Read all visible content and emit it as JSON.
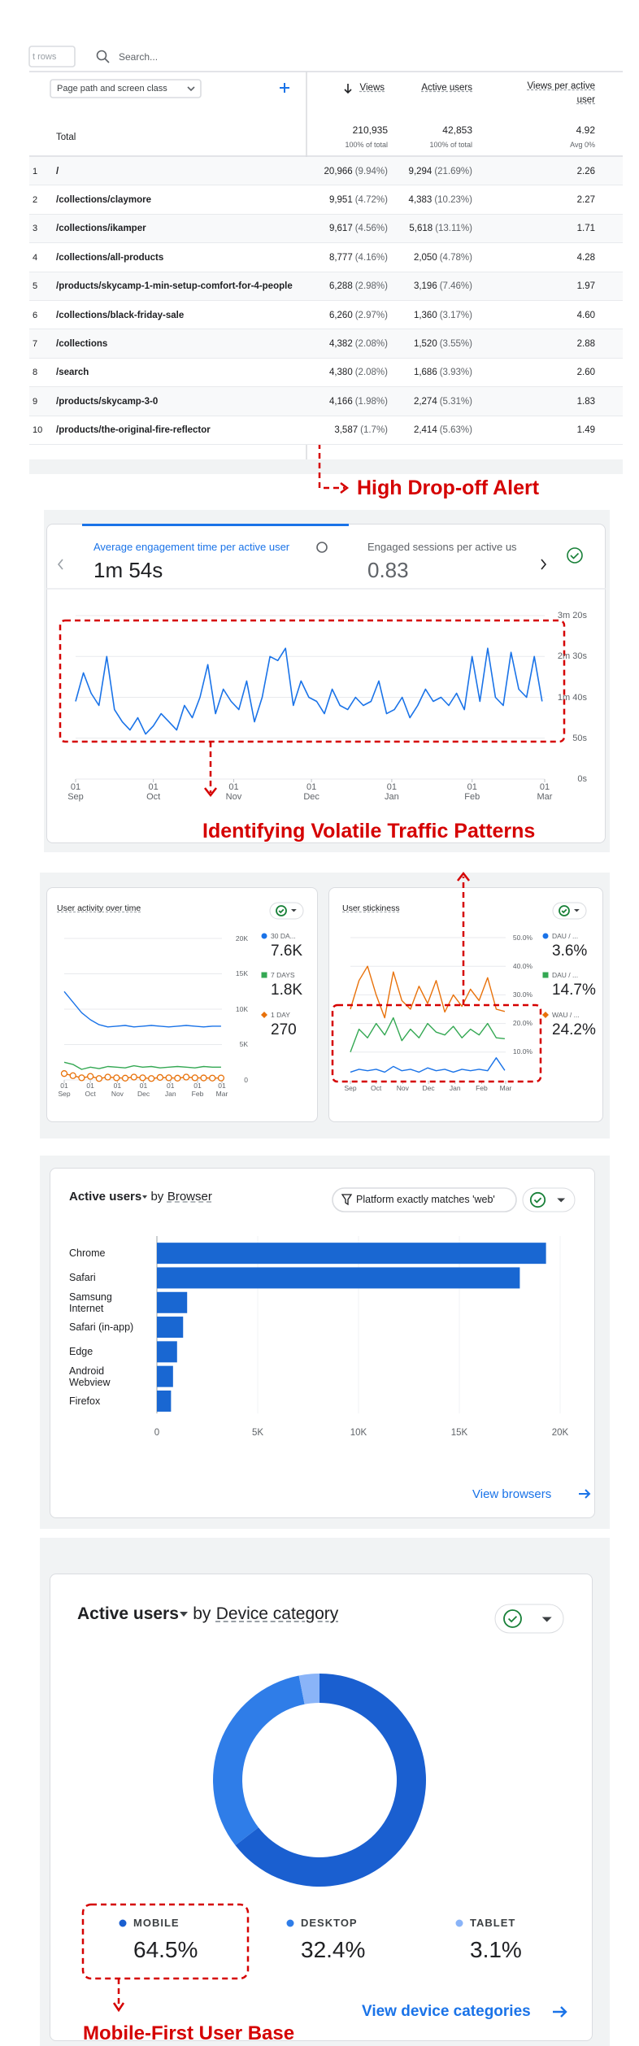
{
  "table": {
    "rows_label": "t rows",
    "search_placeholder": "Search...",
    "dimension": "Page path and screen class",
    "columns": [
      "Views",
      "Active users",
      "Views per active user"
    ],
    "total": {
      "label": "Total",
      "cells": [
        [
          "210,935",
          "100% of total"
        ],
        [
          "42,853",
          "100% of total"
        ],
        [
          "4.92",
          "Avg 0%"
        ]
      ]
    },
    "rows": [
      [
        "1",
        "/",
        "20,966",
        "(9.94%)",
        "9,294",
        "(21.69%)",
        "2.26"
      ],
      [
        "2",
        "/collections/claymore",
        "9,951",
        "(4.72%)",
        "4,383",
        "(10.23%)",
        "2.27"
      ],
      [
        "3",
        "/collections/ikamper",
        "9,617",
        "(4.56%)",
        "5,618",
        "(13.11%)",
        "1.71"
      ],
      [
        "4",
        "/collections/all-products",
        "8,777",
        "(4.16%)",
        "2,050",
        "(4.78%)",
        "4.28"
      ],
      [
        "5",
        "/products/skycamp-1-min-setup-comfort-for-4-people",
        "6,288",
        "(2.98%)",
        "3,196",
        "(7.46%)",
        "1.97"
      ],
      [
        "6",
        "/collections/black-friday-sale",
        "6,260",
        "(2.97%)",
        "1,360",
        "(3.17%)",
        "4.60"
      ],
      [
        "7",
        "/collections",
        "4,382",
        "(2.08%)",
        "1,520",
        "(3.55%)",
        "2.88"
      ],
      [
        "8",
        "/search",
        "4,380",
        "(2.08%)",
        "1,686",
        "(3.93%)",
        "2.60"
      ],
      [
        "9",
        "/products/skycamp-3-0",
        "4,166",
        "(1.98%)",
        "2,274",
        "(5.31%)",
        "1.83"
      ],
      [
        "10",
        "/products/the-original-fire-reflector",
        "3,587",
        "(1.7%)",
        "2,414",
        "(5.63%)",
        "1.49"
      ]
    ]
  },
  "annotations": {
    "drop_off": "High Drop-off Alert",
    "volatile": "Identifying Volatile Traffic Patterns",
    "mobile": "Mobile-First User Base"
  },
  "chart_data": [
    {
      "type": "line",
      "tabs": [
        {
          "label": "Average engagement time per active user",
          "value": "1m 54s"
        },
        {
          "label": "Engaged sessions per active us",
          "value": "0.83"
        }
      ],
      "x": [
        0,
        3,
        6,
        9,
        12,
        15,
        18,
        21,
        24,
        27,
        30,
        33,
        36,
        39,
        42,
        45,
        48,
        51,
        54,
        57,
        60,
        63,
        66,
        69,
        72,
        75,
        78,
        81,
        84,
        87,
        90,
        93,
        96,
        99,
        102,
        105,
        108,
        111,
        114,
        117,
        120,
        123,
        126,
        129,
        132,
        135,
        138,
        141,
        144,
        147,
        150,
        153,
        156,
        159,
        162,
        165,
        168,
        171,
        174,
        177,
        180
      ],
      "series": [
        {
          "color": "#1a73e8",
          "values": [
            95,
            130,
            105,
            90,
            150,
            85,
            70,
            60,
            75,
            55,
            65,
            80,
            70,
            60,
            90,
            75,
            100,
            140,
            80,
            110,
            95,
            85,
            120,
            70,
            100,
            150,
            145,
            160,
            90,
            120,
            100,
            95,
            80,
            110,
            90,
            85,
            100,
            90,
            95,
            120,
            80,
            85,
            100,
            75,
            90,
            110,
            95,
            100,
            90,
            105,
            85,
            150,
            95,
            160,
            100,
            90,
            155,
            110,
            100,
            150,
            95
          ]
        }
      ],
      "xlim": [
        0,
        181
      ],
      "xticks": [
        {
          "value": 0,
          "label": "01 Sep"
        },
        {
          "value": 30,
          "label": "01 Oct"
        },
        {
          "value": 61,
          "label": "01 Nov"
        },
        {
          "value": 91,
          "label": "01 Dec"
        },
        {
          "value": 122,
          "label": "01 Jan"
        },
        {
          "value": 153,
          "label": "01 Feb"
        },
        {
          "value": 181,
          "label": "01 Mar"
        }
      ],
      "ylim": [
        0,
        200
      ],
      "yticks": [
        {
          "value": 200,
          "label": "3m 20s"
        },
        {
          "value": 150,
          "label": "2m 30s"
        },
        {
          "value": 100,
          "label": "1m 40s"
        },
        {
          "value": 50,
          "label": "50s"
        },
        {
          "value": 0,
          "label": "0s"
        }
      ],
      "grid": true
    },
    {
      "type": "line",
      "title": "User activity over time",
      "x": [
        0,
        10,
        20,
        30,
        40,
        50,
        60,
        70,
        80,
        90,
        100,
        110,
        120,
        130,
        140,
        150,
        160,
        170,
        180
      ],
      "series": [
        {
          "name": "30 DA...",
          "color": "#1a73e8",
          "value_label": "7.6K",
          "values": [
            12500,
            11000,
            9500,
            8500,
            7800,
            7500,
            7600,
            7700,
            7500,
            7600,
            7700,
            7600,
            7500,
            7600,
            7700,
            7600,
            7500,
            7600,
            7600
          ]
        },
        {
          "name": "7 DAYS",
          "color": "#34a853",
          "value_label": "1.8K",
          "values": [
            2500,
            2200,
            1500,
            1800,
            1600,
            1900,
            1800,
            1700,
            2000,
            1800,
            1900,
            1700,
            1800,
            1900,
            1800,
            1700,
            1900,
            1800,
            1800
          ]
        },
        {
          "name": "1 DAY",
          "color": "#e8710a",
          "value_label": "270",
          "markers": true,
          "values": [
            900,
            600,
            300,
            500,
            200,
            400,
            300,
            250,
            400,
            300,
            200,
            350,
            300,
            250,
            400,
            300,
            280,
            260,
            270
          ]
        }
      ],
      "xlim": [
        0,
        181
      ],
      "xticks": [
        {
          "value": 0,
          "label": "01 Sep"
        },
        {
          "value": 30,
          "label": "01 Oct"
        },
        {
          "value": 61,
          "label": "01 Nov"
        },
        {
          "value": 91,
          "label": "01 Dec"
        },
        {
          "value": 122,
          "label": "01 Jan"
        },
        {
          "value": 153,
          "label": "01 Feb"
        },
        {
          "value": 181,
          "label": "01 Mar"
        }
      ],
      "ylim": [
        0,
        20000
      ],
      "yticks": [
        {
          "value": 20000,
          "label": "20K"
        },
        {
          "value": 15000,
          "label": "15K"
        },
        {
          "value": 10000,
          "label": "10K"
        },
        {
          "value": 5000,
          "label": "5K"
        },
        0
      ],
      "grid": true
    },
    {
      "type": "line",
      "title": "User stickiness",
      "x": [
        0,
        10,
        20,
        30,
        40,
        50,
        60,
        70,
        80,
        90,
        100,
        110,
        120,
        130,
        140,
        150,
        160,
        170,
        180
      ],
      "series": [
        {
          "name": "DAU / ...",
          "color": "#1a73e8",
          "value_label": "3.6%",
          "values": [
            3,
            4,
            3.5,
            4,
            3,
            5,
            3.5,
            4,
            3,
            4.5,
            3.5,
            4,
            3,
            4,
            3.5,
            4,
            3.5,
            8,
            3.6
          ]
        },
        {
          "name": "DAU / ...",
          "color": "#34a853",
          "value_label": "14.7%",
          "values": [
            10,
            18,
            15,
            20,
            16,
            22,
            14,
            18,
            15,
            20,
            17,
            16,
            19,
            15,
            18,
            16,
            20,
            15,
            14.7
          ]
        },
        {
          "name": "WAU / ...",
          "color": "#e8710a",
          "value_label": "24.2%",
          "values": [
            25,
            35,
            40,
            30,
            22,
            38,
            28,
            25,
            33,
            27,
            35,
            24,
            30,
            26,
            32,
            28,
            36,
            25,
            24.2
          ]
        }
      ],
      "xlim": [
        0,
        181
      ],
      "xticks": [
        {
          "value": 0,
          "label": "Sep"
        },
        {
          "value": 30,
          "label": "Oct"
        },
        {
          "value": 61,
          "label": "Nov"
        },
        {
          "value": 91,
          "label": "Dec"
        },
        {
          "value": 122,
          "label": "Jan"
        },
        {
          "value": 153,
          "label": "Feb"
        },
        {
          "value": 181,
          "label": "Mar"
        }
      ],
      "ylim": [
        0,
        50
      ],
      "yticks": [
        {
          "value": 50,
          "label": "50.0%"
        },
        {
          "value": 40,
          "label": "40.0%"
        },
        {
          "value": 30,
          "label": "30.0%"
        },
        {
          "value": 20,
          "label": "20.0%"
        },
        {
          "value": 10,
          "label": "10.0%"
        }
      ],
      "grid": true
    },
    {
      "type": "bar",
      "orientation": "horizontal",
      "title": "Active users",
      "title_by": "by",
      "dimension": "Browser",
      "filter": "Platform exactly matches 'web'",
      "link": "View browsers",
      "categories": [
        "Chrome",
        "Safari",
        "Samsung Internet",
        "Safari (in-app)",
        "Edge",
        "Android Webview",
        "Firefox"
      ],
      "values": [
        19300,
        18000,
        1500,
        1300,
        1000,
        800,
        700
      ],
      "color": "#1967d2",
      "xlim": [
        0,
        20000
      ],
      "xticks": [
        0,
        {
          "value": 5000,
          "label": "5K"
        },
        {
          "value": 10000,
          "label": "10K"
        },
        {
          "value": 15000,
          "label": "15K"
        },
        {
          "value": 20000,
          "label": "20K"
        }
      ]
    },
    {
      "type": "pie",
      "donut": true,
      "title": "Active users",
      "title_by": "by",
      "dimension": "Device category",
      "link": "View device categories",
      "categories": [
        "MOBILE",
        "DESKTOP",
        "TABLET"
      ],
      "values": [
        64.5,
        32.4,
        3.1
      ],
      "value_labels": [
        "64.5%",
        "32.4%",
        "3.1%"
      ],
      "colors": [
        "#1a5fd0",
        "#2f7de8",
        "#8ab4f8"
      ]
    }
  ]
}
